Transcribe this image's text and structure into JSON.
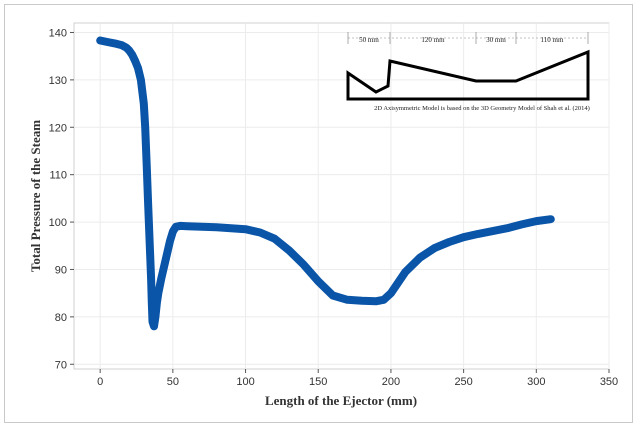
{
  "chart_data": {
    "type": "line",
    "xlabel": "Length of the Ejector (mm)",
    "ylabel": "Total Pressure of the Steam",
    "xlim": [
      -18,
      350
    ],
    "ylim": [
      69,
      142
    ],
    "xticks": [
      0,
      50,
      100,
      150,
      200,
      250,
      300,
      350
    ],
    "yticks": [
      70,
      80,
      90,
      100,
      110,
      120,
      130,
      140
    ],
    "grid": true,
    "series_color": "#0a55a8",
    "series": [
      {
        "points": [
          [
            0,
            138.3
          ],
          [
            5,
            138.0
          ],
          [
            10,
            137.7
          ],
          [
            15,
            137.3
          ],
          [
            18,
            136.8
          ],
          [
            20,
            136.2
          ],
          [
            22,
            135.3
          ],
          [
            24,
            134.0
          ],
          [
            26,
            132.5
          ],
          [
            28,
            130.0
          ],
          [
            30,
            125.0
          ],
          [
            31,
            120.0
          ],
          [
            32,
            112.0
          ],
          [
            33,
            104.0
          ],
          [
            34,
            96.0
          ],
          [
            35,
            88.0
          ],
          [
            35.5,
            83.0
          ],
          [
            36,
            79.0
          ],
          [
            37,
            78.0
          ],
          [
            38,
            80.0
          ],
          [
            39,
            83.0
          ],
          [
            40,
            85.0
          ],
          [
            42,
            88.0
          ],
          [
            45,
            92.0
          ],
          [
            48,
            96.0
          ],
          [
            50,
            98.0
          ],
          [
            52,
            99.0
          ],
          [
            55,
            99.2
          ],
          [
            60,
            99.1
          ],
          [
            70,
            99.0
          ],
          [
            80,
            98.9
          ],
          [
            90,
            98.7
          ],
          [
            100,
            98.5
          ],
          [
            110,
            97.8
          ],
          [
            120,
            96.5
          ],
          [
            130,
            94.0
          ],
          [
            140,
            91.0
          ],
          [
            150,
            87.5
          ],
          [
            160,
            84.5
          ],
          [
            170,
            83.6
          ],
          [
            180,
            83.4
          ],
          [
            190,
            83.3
          ],
          [
            195,
            83.6
          ],
          [
            200,
            85.0
          ],
          [
            210,
            89.5
          ],
          [
            220,
            92.5
          ],
          [
            230,
            94.5
          ],
          [
            240,
            95.8
          ],
          [
            250,
            96.8
          ],
          [
            260,
            97.5
          ],
          [
            270,
            98.1
          ],
          [
            280,
            98.7
          ],
          [
            290,
            99.5
          ],
          [
            300,
            100.2
          ],
          [
            310,
            100.6
          ]
        ]
      }
    ],
    "inset": {
      "segments": [
        "50 mm",
        "120 mm",
        "30 mm",
        "110 mm"
      ],
      "caption": "2D Axisymmetric Model is based on the 3D Geometry Model of Shah et al. (2014)"
    }
  }
}
